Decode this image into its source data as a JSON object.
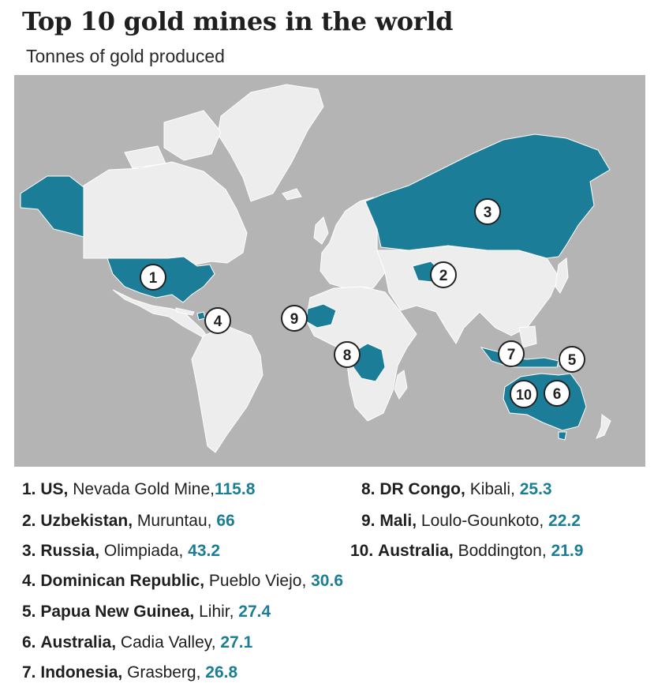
{
  "title": "Top 10 gold mines in the world",
  "subtitle": "Tonnes of gold produced",
  "colors": {
    "ocean": "#b4b4b4",
    "land": "#ededed",
    "highlight": "#1b7d97",
    "value": "#1b7d97",
    "border": "#ffffff"
  },
  "mines": [
    {
      "rank": "1",
      "rank_label": "1.",
      "country": "US,",
      "mine": "Nevada Gold Mine,",
      "value": "115.8"
    },
    {
      "rank": "2",
      "rank_label": "2.",
      "country": "Uzbekistan,",
      "mine": "Muruntau,",
      "value": "66"
    },
    {
      "rank": "3",
      "rank_label": "3.",
      "country": "Russia,",
      "mine": "Olimpiada,",
      "value": "43.2"
    },
    {
      "rank": "4",
      "rank_label": "4.",
      "country": "Dominican Republic,",
      "mine": "Pueblo Viejo,",
      "value": "30.6"
    },
    {
      "rank": "5",
      "rank_label": "5.",
      "country": "Papua New Guinea,",
      "mine": "Lihir,",
      "value": "27.4"
    },
    {
      "rank": "6",
      "rank_label": "6.",
      "country": "Australia,",
      "mine": "Cadia Valley,",
      "value": "27.1"
    },
    {
      "rank": "7",
      "rank_label": "7.",
      "country": "Indonesia,",
      "mine": "Grasberg,",
      "value": "26.8"
    },
    {
      "rank": "8",
      "rank_label": "8.",
      "country": "DR Congo,",
      "mine": "Kibali,",
      "value": "25.3"
    },
    {
      "rank": "9",
      "rank_label": "9.",
      "country": "Mali,",
      "mine": "Loulo-Gounkoto,",
      "value": "22.2"
    },
    {
      "rank": "10",
      "rank_label": "10.",
      "country": "Australia,",
      "mine": "Boddington,",
      "value": "21.9"
    }
  ]
}
